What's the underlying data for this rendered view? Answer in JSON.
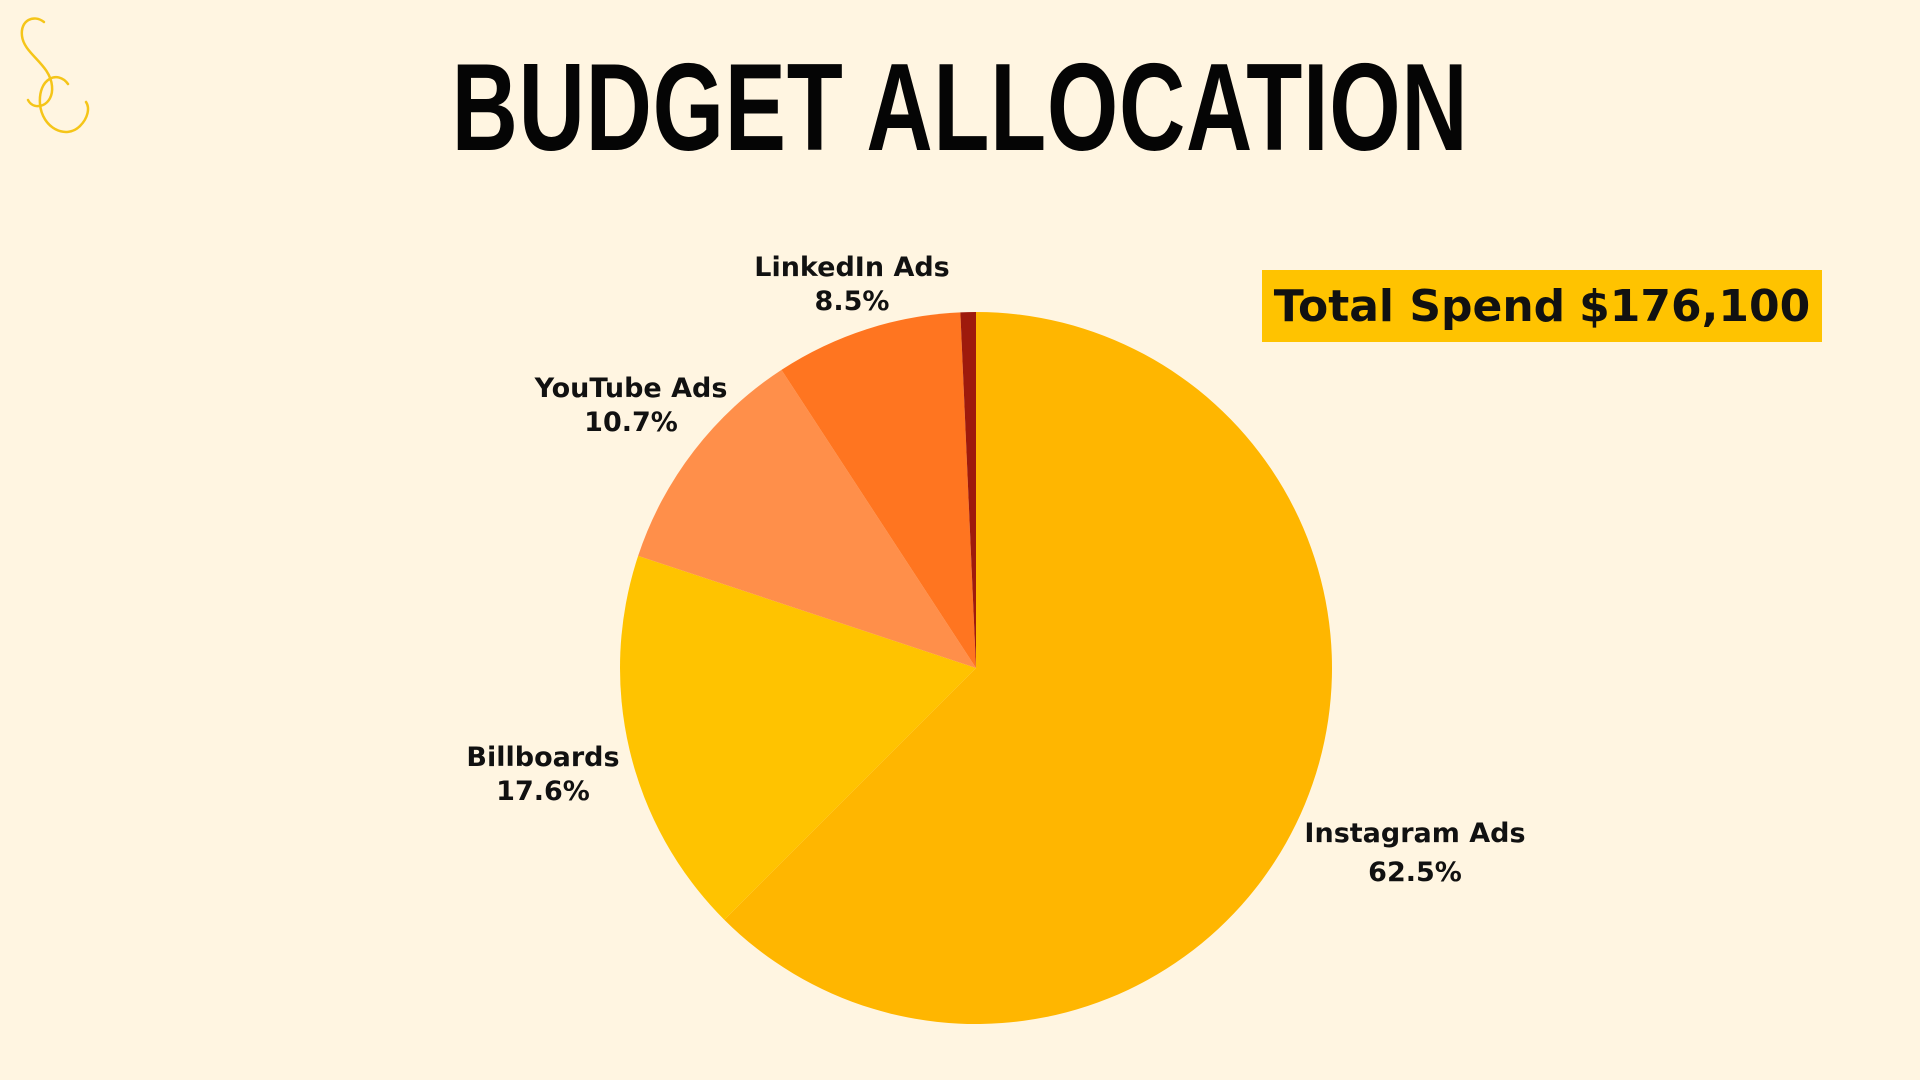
{
  "title": "BUDGET ALLOCATION",
  "total": {
    "label": "Total Spend",
    "value": "$176,100"
  },
  "colors": {
    "background": "#fff5e1",
    "accent": "#ffc300"
  },
  "logo": {
    "name": "sc-monogram-logo",
    "color": "#f5c518"
  },
  "chart_data": {
    "type": "pie",
    "title": "BUDGET ALLOCATION",
    "start_angle_deg": 0,
    "direction": "clockwise",
    "slices": [
      {
        "name": "Instagram Ads",
        "percent_label": "62.5%",
        "value": 62.5,
        "color": "#ffb600"
      },
      {
        "name": "Billboards",
        "percent_label": "17.6%",
        "value": 17.6,
        "color": "#ffc300"
      },
      {
        "name": "YouTube Ads",
        "percent_label": "10.7%",
        "value": 10.7,
        "color": "#ff8f4a"
      },
      {
        "name": "LinkedIn Ads",
        "percent_label": "8.5%",
        "value": 8.5,
        "color": "#ff7520"
      },
      {
        "name": "",
        "percent_label": "",
        "value": 0.7,
        "color": "#9e1a0c"
      }
    ]
  }
}
